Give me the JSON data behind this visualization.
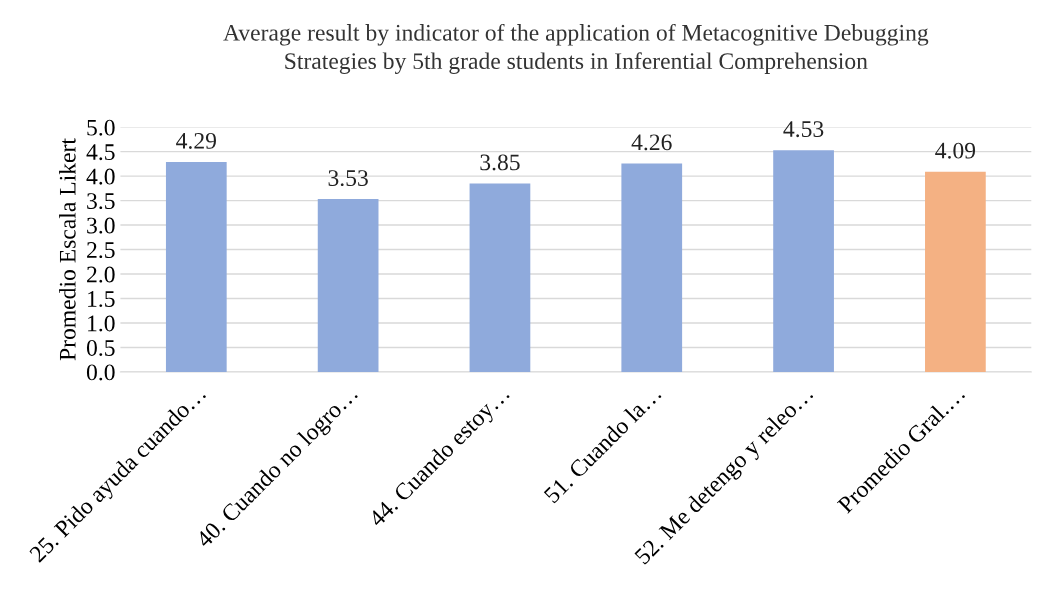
{
  "chart_data": {
    "type": "bar",
    "title": "Average result by indicator of the application of Metacognitive Debugging\nStrategies by 5th grade students in Inferential Comprehension",
    "ylabel": "Promedio Escala Likert",
    "categories": [
      "25. Pido ayuda cuando…",
      "40. Cuando no logro…",
      "44. Cuando estoy…",
      "51. Cuando la…",
      "52. Me detengo y releo…",
      "Promedio Gral.…"
    ],
    "values": [
      4.29,
      3.53,
      3.85,
      4.26,
      4.53,
      4.09
    ],
    "colors": [
      "#8faadc",
      "#8faadc",
      "#8faadc",
      "#8faadc",
      "#8faadc",
      "#f4b183"
    ],
    "data_labels": true,
    "ylim": [
      0,
      5
    ],
    "yticks": [
      {
        "value": 0,
        "label": "0.0"
      },
      {
        "value": 0.5,
        "label": "0.5"
      },
      {
        "value": 1,
        "label": "1.0"
      },
      {
        "value": 1.5,
        "label": "1.5"
      },
      {
        "value": 2,
        "label": "2.0"
      },
      {
        "value": 2.5,
        "label": "2.5"
      },
      {
        "value": 3,
        "label": "3.0"
      },
      {
        "value": 3.5,
        "label": "3.5"
      },
      {
        "value": 4,
        "label": "4.0"
      },
      {
        "value": 4.5,
        "label": "4.5"
      },
      {
        "value": 5,
        "label": "5.0"
      }
    ],
    "grid": "y"
  }
}
